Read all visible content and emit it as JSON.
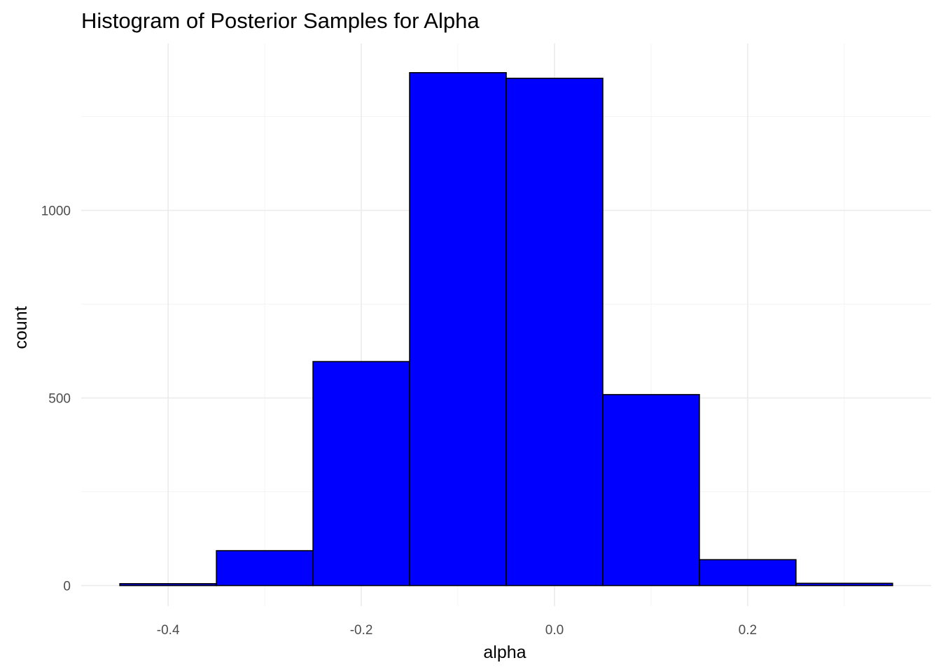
{
  "chart_data": {
    "type": "bar",
    "subtype": "histogram",
    "title": "Histogram of Posterior Samples for Alpha",
    "xlabel": "alpha",
    "ylabel": "count",
    "bin_edges": [
      -0.45,
      -0.35,
      -0.25,
      -0.15,
      -0.05,
      0.05,
      0.15,
      0.25,
      0.35
    ],
    "values": [
      5,
      93,
      597,
      1367,
      1352,
      509,
      69,
      6
    ],
    "xlim": [
      -0.49,
      0.39
    ],
    "ylim": [
      -55,
      1445
    ],
    "x_ticks": [
      -0.4,
      -0.2,
      0.0,
      0.2
    ],
    "x_tick_labels": [
      "-0.4",
      "-0.2",
      "0.0",
      "0.2"
    ],
    "y_ticks": [
      0,
      500,
      1000
    ],
    "y_tick_labels": [
      "0",
      "500",
      "1000"
    ],
    "grid": true,
    "legend": "none",
    "fill_color": "#0000ff",
    "edge_color": "#000000"
  }
}
